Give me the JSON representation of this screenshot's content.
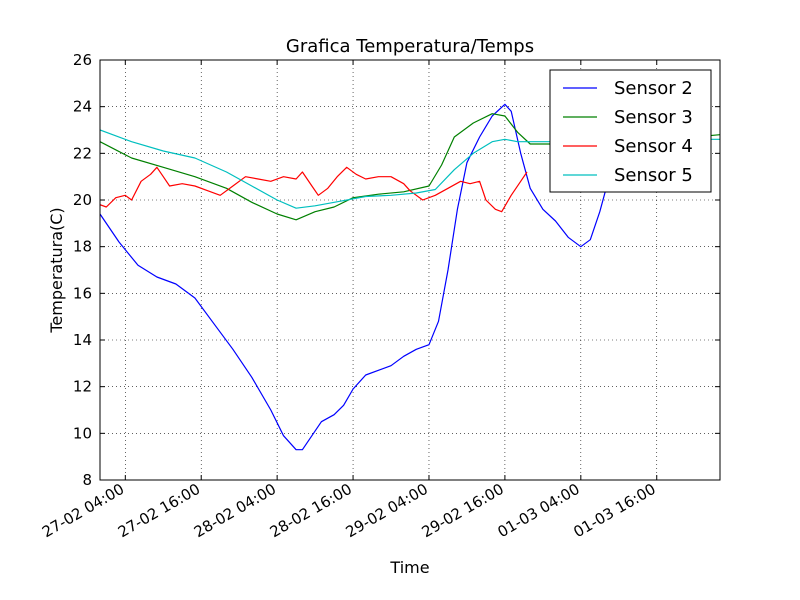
{
  "chart_data": {
    "type": "line",
    "title": "Grafica Temperatura/Temps",
    "xlabel": "Time",
    "ylabel": "Temperatura(C)",
    "x_unit": "datetime",
    "xlim": [
      "2016-02-27T00:00",
      "2016-03-02T02:00"
    ],
    "ylim": [
      8,
      26
    ],
    "x_ticks": [
      {
        "value": "2016-02-27T04:00",
        "label": "27-02 04:00"
      },
      {
        "value": "2016-02-27T16:00",
        "label": "27-02 16:00"
      },
      {
        "value": "2016-02-28T04:00",
        "label": "28-02 04:00"
      },
      {
        "value": "2016-02-28T16:00",
        "label": "28-02 16:00"
      },
      {
        "value": "2016-02-29T04:00",
        "label": "29-02 04:00"
      },
      {
        "value": "2016-02-29T16:00",
        "label": "29-02 16:00"
      },
      {
        "value": "2016-03-01T04:00",
        "label": "01-03 04:00"
      },
      {
        "value": "2016-03-01T16:00",
        "label": "01-03 16:00"
      }
    ],
    "y_ticks": [
      8,
      10,
      12,
      14,
      16,
      18,
      20,
      22,
      24,
      26
    ],
    "grid": true,
    "legend": "top-right",
    "series": [
      {
        "name": "Sensor 2",
        "color": "#0000ff",
        "points": [
          [
            "2016-02-27T00:00",
            19.4
          ],
          [
            "2016-02-27T03:00",
            18.2
          ],
          [
            "2016-02-27T06:00",
            17.2
          ],
          [
            "2016-02-27T09:00",
            16.7
          ],
          [
            "2016-02-27T12:00",
            16.4
          ],
          [
            "2016-02-27T15:00",
            15.8
          ],
          [
            "2016-02-27T18:00",
            14.7
          ],
          [
            "2016-02-27T21:00",
            13.6
          ],
          [
            "2016-02-28T00:00",
            12.4
          ],
          [
            "2016-02-28T03:00",
            11.0
          ],
          [
            "2016-02-28T05:00",
            9.9
          ],
          [
            "2016-02-28T07:00",
            9.3
          ],
          [
            "2016-02-28T08:00",
            9.3
          ],
          [
            "2016-02-28T09:30",
            9.9
          ],
          [
            "2016-02-28T11:00",
            10.5
          ],
          [
            "2016-02-28T13:00",
            10.8
          ],
          [
            "2016-02-28T14:30",
            11.2
          ],
          [
            "2016-02-28T16:00",
            11.9
          ],
          [
            "2016-02-28T18:00",
            12.5
          ],
          [
            "2016-02-28T20:00",
            12.7
          ],
          [
            "2016-02-28T22:00",
            12.9
          ],
          [
            "2016-02-29T00:00",
            13.3
          ],
          [
            "2016-02-29T02:00",
            13.6
          ],
          [
            "2016-02-29T04:00",
            13.8
          ],
          [
            "2016-02-29T05:30",
            14.8
          ],
          [
            "2016-02-29T07:00",
            17.0
          ],
          [
            "2016-02-29T08:30",
            19.6
          ],
          [
            "2016-02-29T10:00",
            21.6
          ],
          [
            "2016-02-29T12:00",
            22.7
          ],
          [
            "2016-02-29T14:00",
            23.6
          ],
          [
            "2016-02-29T16:00",
            24.1
          ],
          [
            "2016-02-29T17:00",
            23.8
          ],
          [
            "2016-02-29T18:30",
            22.0
          ],
          [
            "2016-02-29T20:00",
            20.5
          ],
          [
            "2016-02-29T22:00",
            19.6
          ],
          [
            "2016-03-01T00:00",
            19.1
          ],
          [
            "2016-03-01T02:00",
            18.4
          ],
          [
            "2016-03-01T04:00",
            18.0
          ],
          [
            "2016-03-01T05:30",
            18.3
          ],
          [
            "2016-03-01T07:00",
            19.5
          ],
          [
            "2016-03-01T08:30",
            21.0
          ]
        ]
      },
      {
        "name": "Sensor 3",
        "color": "#008000",
        "points": [
          [
            "2016-02-27T00:00",
            22.5
          ],
          [
            "2016-02-27T05:00",
            21.8
          ],
          [
            "2016-02-27T10:00",
            21.4
          ],
          [
            "2016-02-27T15:00",
            21.0
          ],
          [
            "2016-02-27T20:00",
            20.5
          ],
          [
            "2016-02-28T00:00",
            19.9
          ],
          [
            "2016-02-28T04:00",
            19.4
          ],
          [
            "2016-02-28T07:00",
            19.15
          ],
          [
            "2016-02-28T10:00",
            19.5
          ],
          [
            "2016-02-28T13:00",
            19.7
          ],
          [
            "2016-02-28T16:00",
            20.1
          ],
          [
            "2016-02-28T20:00",
            20.25
          ],
          [
            "2016-02-29T00:00",
            20.35
          ],
          [
            "2016-02-29T04:00",
            20.6
          ],
          [
            "2016-02-29T06:00",
            21.5
          ],
          [
            "2016-02-29T08:00",
            22.7
          ],
          [
            "2016-02-29T11:00",
            23.3
          ],
          [
            "2016-02-29T14:00",
            23.7
          ],
          [
            "2016-02-29T16:00",
            23.6
          ],
          [
            "2016-02-29T18:00",
            22.9
          ],
          [
            "2016-02-29T20:00",
            22.4
          ],
          [
            "2016-03-01T04:00",
            22.4
          ],
          [
            "2016-03-01T16:00",
            22.6
          ],
          [
            "2016-03-01T22:00",
            22.7
          ],
          [
            "2016-03-02T02:00",
            22.8
          ]
        ]
      },
      {
        "name": "Sensor 4",
        "color": "#ff0000",
        "points": [
          [
            "2016-02-27T00:00",
            19.8
          ],
          [
            "2016-02-27T01:00",
            19.7
          ],
          [
            "2016-02-27T02:30",
            20.1
          ],
          [
            "2016-02-27T04:00",
            20.2
          ],
          [
            "2016-02-27T05:00",
            20.0
          ],
          [
            "2016-02-27T06:30",
            20.8
          ],
          [
            "2016-02-27T08:00",
            21.1
          ],
          [
            "2016-02-27T09:00",
            21.4
          ],
          [
            "2016-02-27T10:00",
            21.0
          ],
          [
            "2016-02-27T11:00",
            20.6
          ],
          [
            "2016-02-27T13:00",
            20.7
          ],
          [
            "2016-02-27T15:00",
            20.6
          ],
          [
            "2016-02-27T17:00",
            20.4
          ],
          [
            "2016-02-27T19:00",
            20.2
          ],
          [
            "2016-02-27T21:00",
            20.6
          ],
          [
            "2016-02-27T23:00",
            21.0
          ],
          [
            "2016-02-28T01:00",
            20.9
          ],
          [
            "2016-02-28T03:00",
            20.8
          ],
          [
            "2016-02-28T05:00",
            21.0
          ],
          [
            "2016-02-28T07:00",
            20.9
          ],
          [
            "2016-02-28T08:00",
            21.2
          ],
          [
            "2016-02-28T09:30",
            20.6
          ],
          [
            "2016-02-28T10:30",
            20.2
          ],
          [
            "2016-02-28T12:00",
            20.5
          ],
          [
            "2016-02-28T13:30",
            21.0
          ],
          [
            "2016-02-28T15:00",
            21.4
          ],
          [
            "2016-02-28T16:30",
            21.1
          ],
          [
            "2016-02-28T18:00",
            20.9
          ],
          [
            "2016-02-28T20:00",
            21.0
          ],
          [
            "2016-02-28T22:00",
            21.0
          ],
          [
            "2016-02-29T00:00",
            20.7
          ],
          [
            "2016-02-29T01:00",
            20.4
          ],
          [
            "2016-02-29T03:00",
            20.0
          ],
          [
            "2016-02-29T05:00",
            20.2
          ],
          [
            "2016-02-29T07:00",
            20.5
          ],
          [
            "2016-02-29T09:00",
            20.8
          ],
          [
            "2016-02-29T10:30",
            20.7
          ],
          [
            "2016-02-29T12:00",
            20.8
          ],
          [
            "2016-02-29T13:00",
            20.0
          ],
          [
            "2016-02-29T14:30",
            19.6
          ],
          [
            "2016-02-29T15:30",
            19.5
          ],
          [
            "2016-02-29T17:00",
            20.2
          ],
          [
            "2016-02-29T18:30",
            20.8
          ],
          [
            "2016-02-29T19:30",
            21.2
          ]
        ]
      },
      {
        "name": "Sensor 5",
        "color": "#00bfbf",
        "points": [
          [
            "2016-02-27T00:00",
            23.0
          ],
          [
            "2016-02-27T05:00",
            22.5
          ],
          [
            "2016-02-27T10:00",
            22.1
          ],
          [
            "2016-02-27T15:00",
            21.8
          ],
          [
            "2016-02-27T20:00",
            21.2
          ],
          [
            "2016-02-28T00:00",
            20.6
          ],
          [
            "2016-02-28T04:00",
            20.0
          ],
          [
            "2016-02-28T07:00",
            19.65
          ],
          [
            "2016-02-28T10:00",
            19.75
          ],
          [
            "2016-02-28T14:00",
            19.95
          ],
          [
            "2016-02-28T18:00",
            20.15
          ],
          [
            "2016-02-28T22:00",
            20.2
          ],
          [
            "2016-02-29T02:00",
            20.3
          ],
          [
            "2016-02-29T05:00",
            20.45
          ],
          [
            "2016-02-29T08:00",
            21.3
          ],
          [
            "2016-02-29T11:00",
            22.0
          ],
          [
            "2016-02-29T14:00",
            22.5
          ],
          [
            "2016-02-29T16:00",
            22.6
          ],
          [
            "2016-02-29T18:00",
            22.5
          ],
          [
            "2016-03-01T04:00",
            22.5
          ],
          [
            "2016-03-01T16:00",
            22.6
          ],
          [
            "2016-03-02T02:00",
            22.6
          ]
        ]
      }
    ]
  }
}
